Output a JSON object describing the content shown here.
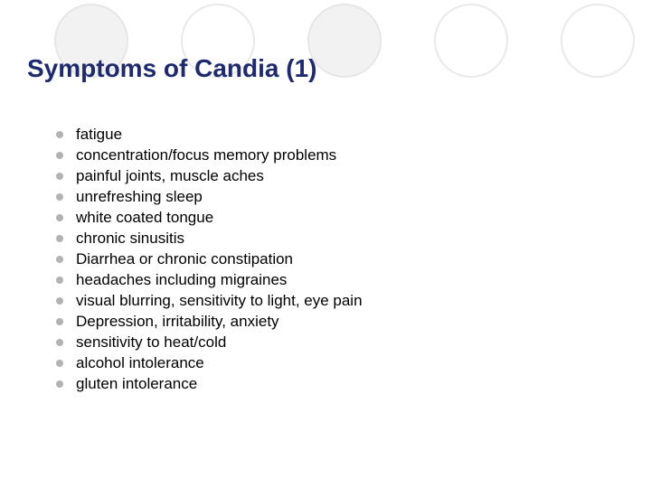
{
  "title": {
    "text": "Symptoms of Candia (1)",
    "color": "#1e2a6e",
    "fontsize": 28
  },
  "bullet": {
    "color": "#b2b2b2",
    "size": 8
  },
  "body_text": {
    "color": "#000000",
    "fontsize": 17
  },
  "items": [
    "fatigue",
    "concentration/focus memory problems",
    "painful joints, muscle aches",
    "unrefreshing sleep",
    "white coated tongue",
    "chronic sinusitis",
    "Diarrhea or chronic constipation",
    "headaches including migraines",
    "visual blurring, sensitivity to light, eye pain",
    "Depression, irritability, anxiety",
    "sensitivity to heat/cold",
    "alcohol intolerance",
    "gluten intolerance"
  ],
  "decorative_circles": [
    {
      "filled": true
    },
    {
      "filled": false
    },
    {
      "filled": true
    },
    {
      "filled": false
    },
    {
      "filled": false
    }
  ],
  "background_color": "#ffffff"
}
